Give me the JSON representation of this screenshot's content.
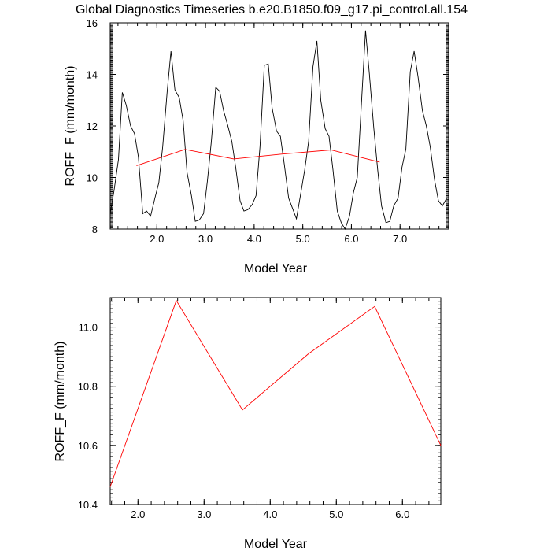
{
  "chart_data": [
    {
      "type": "line",
      "title": "Global Diagnostics Timeseries b.e20.B1850.f09_g17.pi_control.all.154",
      "xlabel": "Model Year",
      "ylabel": "ROFF_F (mm/month)",
      "xlim": [
        1.04,
        8.0
      ],
      "ylim": [
        8,
        16
      ],
      "xticks": [
        "2.0",
        "3.0",
        "4.0",
        "5.0",
        "6.0",
        "7.0"
      ],
      "yticks": [
        "8",
        "10",
        "12",
        "14",
        "16"
      ],
      "grid": false,
      "series": [
        {
          "color": "#000000",
          "x": [
            1.04,
            1.12,
            1.21,
            1.29,
            1.37,
            1.46,
            1.54,
            1.62,
            1.71,
            1.79,
            1.87,
            1.96,
            2.04,
            2.12,
            2.21,
            2.29,
            2.37,
            2.46,
            2.54,
            2.62,
            2.71,
            2.79,
            2.87,
            2.96,
            3.04,
            3.12,
            3.21,
            3.29,
            3.37,
            3.46,
            3.54,
            3.62,
            3.71,
            3.79,
            3.87,
            3.96,
            4.04,
            4.12,
            4.21,
            4.29,
            4.37,
            4.46,
            4.54,
            4.62,
            4.71,
            4.79,
            4.87,
            4.96,
            5.04,
            5.12,
            5.21,
            5.29,
            5.37,
            5.46,
            5.54,
            5.62,
            5.71,
            5.79,
            5.87,
            5.96,
            6.04,
            6.12,
            6.21,
            6.29,
            6.37,
            6.46,
            6.54,
            6.62,
            6.71,
            6.79,
            6.87,
            6.96,
            7.04,
            7.12,
            7.21,
            7.29,
            7.37,
            7.46,
            7.54,
            7.62,
            7.71,
            7.79,
            7.87,
            7.96
          ],
          "y": [
            8.6,
            9.5,
            10.7,
            13.3,
            12.8,
            12.0,
            11.7,
            10.8,
            8.6,
            8.7,
            8.5,
            9.2,
            9.8,
            11.2,
            13.3,
            14.9,
            13.4,
            13.1,
            12.2,
            10.2,
            9.3,
            8.3,
            8.35,
            8.6,
            9.9,
            11.4,
            13.5,
            13.35,
            12.6,
            12.0,
            11.4,
            10.4,
            9.1,
            8.7,
            8.75,
            8.95,
            9.3,
            11.2,
            14.35,
            14.4,
            12.7,
            11.8,
            11.6,
            10.5,
            9.2,
            8.8,
            8.4,
            9.4,
            10.3,
            11.4,
            14.3,
            15.3,
            13.0,
            11.9,
            11.6,
            10.3,
            8.7,
            8.25,
            8.0,
            8.5,
            9.4,
            10.0,
            13.0,
            15.7,
            14.0,
            11.9,
            10.3,
            8.9,
            8.25,
            8.3,
            8.9,
            9.2,
            10.4,
            11.1,
            14.1,
            14.9,
            13.9,
            12.6,
            12.0,
            11.2,
            9.9,
            9.1,
            8.9,
            9.2
          ]
        },
        {
          "color": "#ff0000",
          "x": [
            1.58,
            2.58,
            3.58,
            4.58,
            5.58,
            6.58
          ],
          "y": [
            10.46,
            11.09,
            10.72,
            10.91,
            11.07,
            10.6
          ]
        }
      ]
    },
    {
      "type": "line",
      "title": "",
      "xlabel": "Model Year",
      "ylabel": "ROFF_F (mm/month)",
      "xlim": [
        1.58,
        6.58
      ],
      "ylim": [
        10.4,
        11.1
      ],
      "xticks": [
        "2.0",
        "3.0",
        "4.0",
        "5.0",
        "6.0"
      ],
      "yticks": [
        "10.4",
        "10.6",
        "10.8",
        "11.0"
      ],
      "grid": false,
      "series": [
        {
          "color": "#ff0000",
          "x": [
            1.58,
            2.58,
            3.58,
            4.58,
            5.58,
            6.58
          ],
          "y": [
            10.46,
            11.09,
            10.72,
            10.91,
            11.07,
            10.6
          ]
        }
      ]
    }
  ]
}
